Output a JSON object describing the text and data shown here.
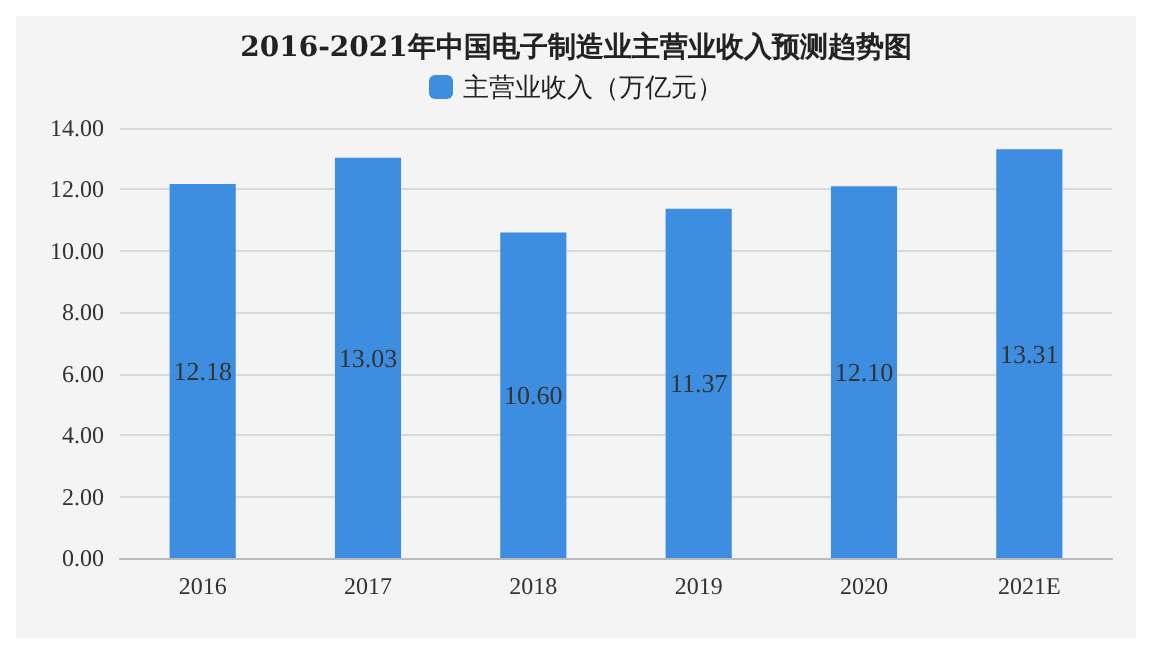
{
  "chart_data": {
    "type": "bar",
    "title": "2016-2021年中国电子制造业主营业收入预测趋势图",
    "categories": [
      "2016",
      "2017",
      "2018",
      "2019",
      "2020",
      "2021E"
    ],
    "series": [
      {
        "name": "主营业收入（万亿元）",
        "color": "#3d8ee0",
        "values": [
          12.18,
          13.03,
          10.6,
          11.37,
          12.1,
          13.31
        ]
      }
    ],
    "value_labels": [
      "12.18",
      "13.03",
      "10.60",
      "11.37",
      "12.10",
      "13.31"
    ],
    "ylim": [
      0,
      14
    ],
    "yticks": [
      {
        "value": 0,
        "label": "0.00"
      },
      {
        "value": 2,
        "label": "2.00"
      },
      {
        "value": 4,
        "label": "4.00"
      },
      {
        "value": 6,
        "label": "6.00"
      },
      {
        "value": 8,
        "label": "8.00"
      },
      {
        "value": 10,
        "label": "10.00"
      },
      {
        "value": 12,
        "label": "12.00"
      },
      {
        "value": 14,
        "label": "14.00"
      }
    ],
    "grid": "y",
    "legend": "top"
  }
}
